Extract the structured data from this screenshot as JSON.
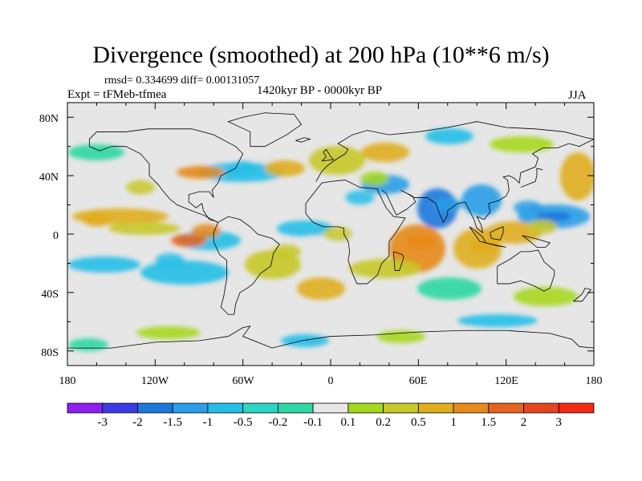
{
  "title": "Divergence (smoothed) at 200 hPa (10**6 m/s)",
  "stats": "rmsd= 0.334699 diff= 0.00131057",
  "experiment": "Expt = tFMeb-tfmea",
  "period": "1420kyr BP - 0000kyr BP",
  "season": "JJA",
  "y_ticks": [
    "80N",
    "40N",
    "0",
    "40S",
    "80S"
  ],
  "x_ticks": [
    "180",
    "120W",
    "60W",
    "0",
    "60E",
    "120E",
    "180"
  ],
  "colorbar": {
    "labels": [
      "-3",
      "-2",
      "-1.5",
      "-1",
      "-0.5",
      "-0.2",
      "-0.1",
      "0.1",
      "0.2",
      "0.5",
      "1",
      "1.5",
      "2",
      "3"
    ],
    "colors": [
      "#8f1ef0",
      "#3c3ce6",
      "#1e78dc",
      "#2a9ee8",
      "#26bee8",
      "#2ad6c6",
      "#2ed8a2",
      "#e6e6e6",
      "#a6d81e",
      "#c8c828",
      "#e0ae1c",
      "#e68a1a",
      "#e66420",
      "#e6461e",
      "#f02a14"
    ]
  },
  "chart_data": {
    "type": "map",
    "variable": "Divergence (smoothed) at 200 hPa",
    "units": "10**6 m/s",
    "projection": "cylindrical equidistant",
    "lon_range": [
      -180,
      180
    ],
    "lat_range": [
      -90,
      90
    ],
    "levels": [
      -3,
      -2,
      -1.5,
      -1,
      -0.5,
      -0.2,
      -0.1,
      0.1,
      0.2,
      0.5,
      1,
      1.5,
      2,
      3
    ],
    "anomalies": [
      {
        "lon": -85,
        "lat": 2,
        "value": 1.5
      },
      {
        "lon": -160,
        "lat": 10,
        "value": 1.0
      },
      {
        "lon": 62,
        "lat": -5,
        "value": 1.5
      },
      {
        "lon": 105,
        "lat": -8,
        "value": 1.0
      },
      {
        "lon": 80,
        "lat": 20,
        "value": -1.0
      },
      {
        "lon": 135,
        "lat": 18,
        "value": -1.0
      },
      {
        "lon": 145,
        "lat": 5,
        "value": 0.5
      },
      {
        "lon": -110,
        "lat": -18,
        "value": -0.5
      },
      {
        "lon": -30,
        "lat": -12,
        "value": 0.5
      },
      {
        "lon": 20,
        "lat": 25,
        "value": -0.5
      },
      {
        "lon": -60,
        "lat": 45,
        "value": -0.5
      },
      {
        "lon": 30,
        "lat": 38,
        "value": 0.2
      },
      {
        "lon": 5,
        "lat": 0,
        "value": 0.5
      },
      {
        "lon": -130,
        "lat": 32,
        "value": 0.5
      }
    ]
  }
}
